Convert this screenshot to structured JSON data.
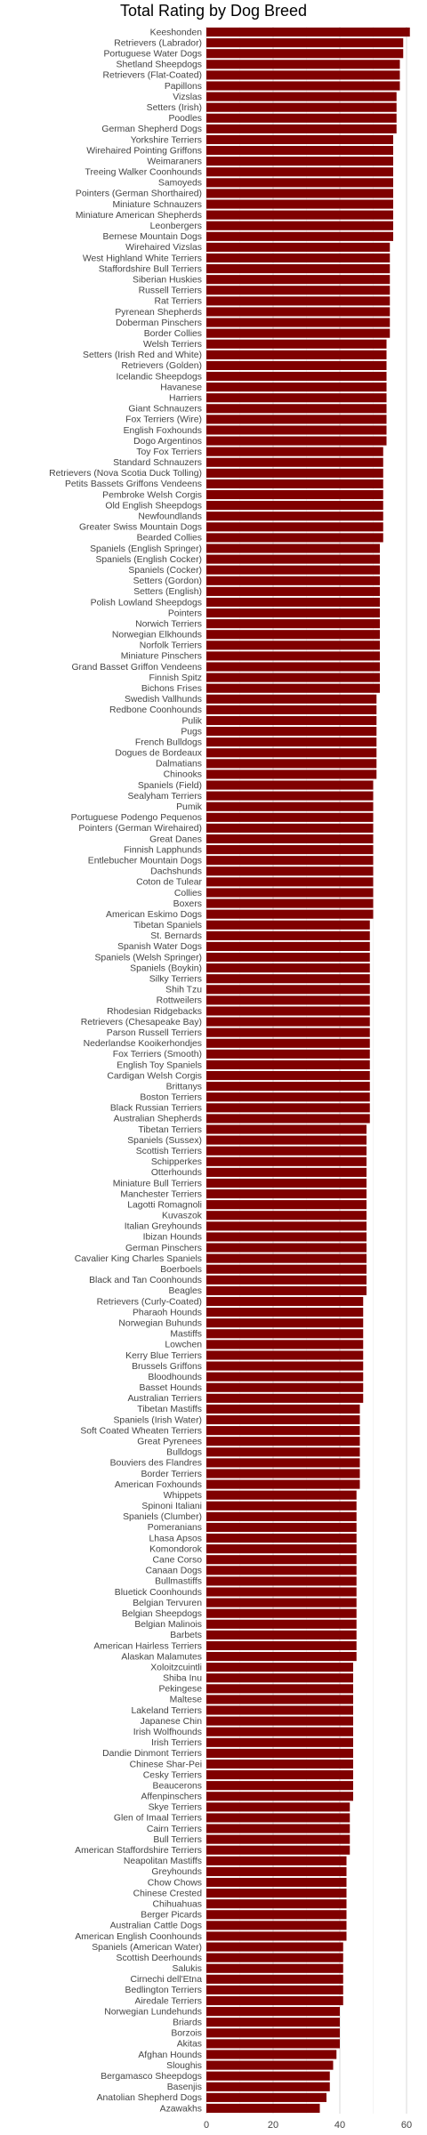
{
  "chart_data": {
    "type": "bar",
    "orientation": "horizontal",
    "title": "Total Rating by Dog Breed",
    "xlabel": "",
    "ylabel": "",
    "xlim": [
      0,
      64
    ],
    "x_ticks": [
      0,
      20,
      40,
      60
    ],
    "grid": true,
    "bar_color": "#800000",
    "categories": [
      "Keeshonden",
      "Retrievers (Labrador)",
      "Portuguese Water Dogs",
      "Shetland Sheepdogs",
      "Retrievers (Flat-Coated)",
      "Papillons",
      "Vizslas",
      "Setters (Irish)",
      "Poodles",
      "German Shepherd Dogs",
      "Yorkshire Terriers",
      "Wirehaired Pointing Griffons",
      "Weimaraners",
      "Treeing Walker Coonhounds",
      "Samoyeds",
      "Pointers (German Shorthaired)",
      "Miniature Schnauzers",
      "Miniature American Shepherds",
      "Leonbergers",
      "Bernese Mountain Dogs",
      "Wirehaired Vizslas",
      "West Highland White Terriers",
      "Staffordshire Bull Terriers",
      "Siberian Huskies",
      "Russell Terriers",
      "Rat Terriers",
      "Pyrenean Shepherds",
      "Doberman Pinschers",
      "Border Collies",
      "Welsh Terriers",
      "Setters (Irish Red and White)",
      "Retrievers (Golden)",
      "Icelandic Sheepdogs",
      "Havanese",
      "Harriers",
      "Giant Schnauzers",
      "Fox Terriers (Wire)",
      "English Foxhounds",
      "Dogo Argentinos",
      "Toy Fox Terriers",
      "Standard Schnauzers",
      "Retrievers (Nova Scotia Duck Tolling)",
      "Petits Bassets Griffons Vendeens",
      "Pembroke Welsh Corgis",
      "Old English Sheepdogs",
      "Newfoundlands",
      "Greater Swiss Mountain Dogs",
      "Bearded Collies",
      "Spaniels (English Springer)",
      "Spaniels (English Cocker)",
      "Spaniels (Cocker)",
      "Setters (Gordon)",
      "Setters (English)",
      "Polish Lowland Sheepdogs",
      "Pointers",
      "Norwich Terriers",
      "Norwegian Elkhounds",
      "Norfolk Terriers",
      "Miniature Pinschers",
      "Grand Basset Griffon Vendeens",
      "Finnish Spitz",
      "Bichons Frises",
      "Swedish Vallhunds",
      "Redbone Coonhounds",
      "Pulik",
      "Pugs",
      "French Bulldogs",
      "Dogues de Bordeaux",
      "Dalmatians",
      "Chinooks",
      "Spaniels (Field)",
      "Sealyham Terriers",
      "Pumik",
      "Portuguese Podengo Pequenos",
      "Pointers (German Wirehaired)",
      "Great Danes",
      "Finnish Lapphunds",
      "Entlebucher Mountain Dogs",
      "Dachshunds",
      "Coton de Tulear",
      "Collies",
      "Boxers",
      "American Eskimo Dogs",
      "Tibetan Spaniels",
      "St. Bernards",
      "Spanish Water Dogs",
      "Spaniels (Welsh Springer)",
      "Spaniels (Boykin)",
      "Silky Terriers",
      "Shih Tzu",
      "Rottweilers",
      "Rhodesian Ridgebacks",
      "Retrievers (Chesapeake Bay)",
      "Parson Russell Terriers",
      "Nederlandse Kooikerhondjes",
      "Fox Terriers (Smooth)",
      "English Toy Spaniels",
      "Cardigan Welsh Corgis",
      "Brittanys",
      "Boston Terriers",
      "Black Russian Terriers",
      "Australian Shepherds",
      "Tibetan Terriers",
      "Spaniels (Sussex)",
      "Scottish Terriers",
      "Schipperkes",
      "Otterhounds",
      "Miniature Bull Terriers",
      "Manchester Terriers",
      "Lagotti Romagnoli",
      "Kuvaszok",
      "Italian Greyhounds",
      "Ibizan Hounds",
      "German Pinschers",
      "Cavalier King Charles Spaniels",
      "Boerboels",
      "Black and Tan Coonhounds",
      "Beagles",
      "Retrievers (Curly-Coated)",
      "Pharaoh Hounds",
      "Norwegian Buhunds",
      "Mastiffs",
      "Lowchen",
      "Kerry Blue Terriers",
      "Brussels Griffons",
      "Bloodhounds",
      "Basset Hounds",
      "Australian Terriers",
      "Tibetan Mastiffs",
      "Spaniels (Irish Water)",
      "Soft Coated Wheaten Terriers",
      "Great Pyrenees",
      "Bulldogs",
      "Bouviers des Flandres",
      "Border Terriers",
      "American Foxhounds",
      "Whippets",
      "Spinoni Italiani",
      "Spaniels (Clumber)",
      "Pomeranians",
      "Lhasa Apsos",
      "Komondorok",
      "Cane Corso",
      "Canaan Dogs",
      "Bullmastiffs",
      "Bluetick Coonhounds",
      "Belgian Tervuren",
      "Belgian Sheepdogs",
      "Belgian Malinois",
      "Barbets",
      "American Hairless Terriers",
      "Alaskan Malamutes",
      "Xoloitzcuintli",
      "Shiba Inu",
      "Pekingese",
      "Maltese",
      "Lakeland Terriers",
      "Japanese Chin",
      "Irish Wolfhounds",
      "Irish Terriers",
      "Dandie Dinmont Terriers",
      "Chinese Shar-Pei",
      "Cesky Terriers",
      "Beaucerons",
      "Affenpinschers",
      "Skye Terriers",
      "Glen of Imaal Terriers",
      "Cairn Terriers",
      "Bull Terriers",
      "American Staffordshire Terriers",
      "Neapolitan Mastiffs",
      "Greyhounds",
      "Chow Chows",
      "Chinese Crested",
      "Chihuahuas",
      "Berger Picards",
      "Australian Cattle Dogs",
      "American English Coonhounds",
      "Spaniels (American Water)",
      "Scottish Deerhounds",
      "Salukis",
      "Cirnechi dell'Etna",
      "Bedlington Terriers",
      "Airedale Terriers",
      "Norwegian Lundehunds",
      "Briards",
      "Borzois",
      "Akitas",
      "Afghan Hounds",
      "Sloughis",
      "Bergamasco Sheepdogs",
      "Basenjis",
      "Anatolian Shepherd Dogs",
      "Azawakhs"
    ],
    "values": [
      61,
      59,
      59,
      58,
      58,
      58,
      57,
      57,
      57,
      57,
      56,
      56,
      56,
      56,
      56,
      56,
      56,
      56,
      56,
      56,
      55,
      55,
      55,
      55,
      55,
      55,
      55,
      55,
      55,
      54,
      54,
      54,
      54,
      54,
      54,
      54,
      54,
      54,
      54,
      53,
      53,
      53,
      53,
      53,
      53,
      53,
      53,
      53,
      52,
      52,
      52,
      52,
      52,
      52,
      52,
      52,
      52,
      52,
      52,
      52,
      52,
      52,
      51,
      51,
      51,
      51,
      51,
      51,
      51,
      51,
      50,
      50,
      50,
      50,
      50,
      50,
      50,
      50,
      50,
      50,
      50,
      50,
      50,
      49,
      49,
      49,
      49,
      49,
      49,
      49,
      49,
      49,
      49,
      49,
      49,
      49,
      49,
      49,
      49,
      49,
      49,
      49,
      48,
      48,
      48,
      48,
      48,
      48,
      48,
      48,
      48,
      48,
      48,
      48,
      48,
      48,
      48,
      48,
      47,
      47,
      47,
      47,
      47,
      47,
      47,
      47,
      47,
      47,
      46,
      46,
      46,
      46,
      46,
      46,
      46,
      46,
      45,
      45,
      45,
      45,
      45,
      45,
      45,
      45,
      45,
      45,
      45,
      45,
      45,
      45,
      45,
      45,
      44,
      44,
      44,
      44,
      44,
      44,
      44,
      44,
      44,
      44,
      44,
      44,
      44,
      43,
      43,
      43,
      43,
      43,
      42,
      42,
      42,
      42,
      42,
      42,
      42,
      42,
      41,
      41,
      41,
      41,
      41,
      41,
      40,
      40,
      40,
      40,
      39,
      38,
      37,
      37,
      36,
      34
    ]
  }
}
